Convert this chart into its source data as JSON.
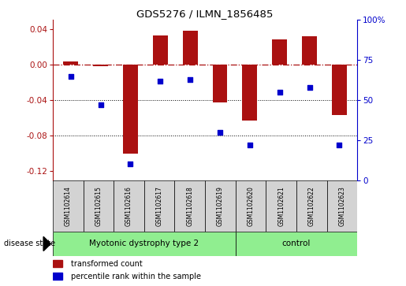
{
  "title": "GDS5276 / ILMN_1856485",
  "samples": [
    "GSM1102614",
    "GSM1102615",
    "GSM1102616",
    "GSM1102617",
    "GSM1102618",
    "GSM1102619",
    "GSM1102620",
    "GSM1102621",
    "GSM1102622",
    "GSM1102623"
  ],
  "bar_values": [
    0.003,
    -0.002,
    -0.1,
    0.033,
    0.038,
    -0.043,
    -0.063,
    0.028,
    0.032,
    -0.057
  ],
  "scatter_values": [
    65,
    47,
    10,
    62,
    63,
    30,
    22,
    55,
    58,
    22
  ],
  "bar_color": "#AA1111",
  "scatter_color": "#0000CC",
  "ylim_left": [
    -0.13,
    0.05
  ],
  "ylim_right": [
    0,
    100
  ],
  "yticks_left": [
    -0.12,
    -0.08,
    -0.04,
    0.0,
    0.04
  ],
  "yticks_right": [
    0,
    25,
    50,
    75,
    100
  ],
  "hline_y": 0.0,
  "dotted_lines": [
    -0.04,
    -0.08
  ],
  "group1_label": "Myotonic dystrophy type 2",
  "group2_label": "control",
  "group1_indices": [
    0,
    1,
    2,
    3,
    4,
    5
  ],
  "group2_indices": [
    6,
    7,
    8,
    9
  ],
  "disease_state_label": "disease state",
  "legend1_label": "transformed count",
  "legend2_label": "percentile rank within the sample",
  "group_box_color": "#90EE90",
  "sample_box_color": "#D3D3D3",
  "bar_width": 0.5
}
